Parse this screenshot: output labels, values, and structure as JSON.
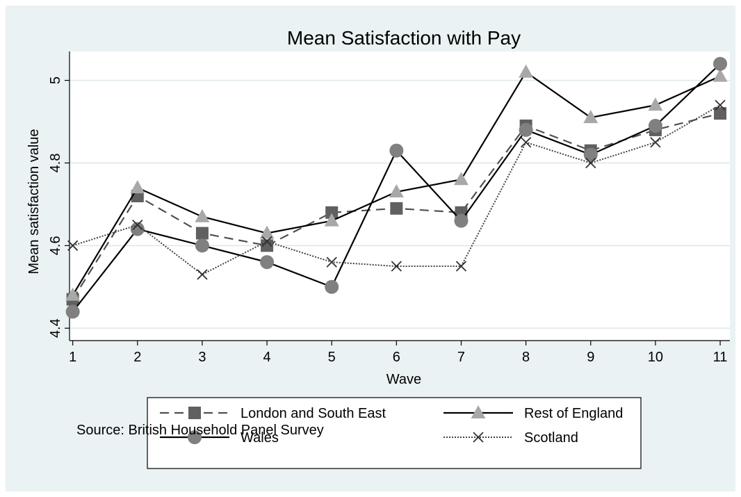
{
  "chart_data": {
    "type": "line",
    "title": "Mean Satisfaction with Pay",
    "xlabel": "Wave",
    "ylabel": "Mean satisfaction value",
    "x": [
      1,
      2,
      3,
      4,
      5,
      6,
      7,
      8,
      9,
      10,
      11
    ],
    "xticks": [
      "1",
      "2",
      "3",
      "4",
      "5",
      "6",
      "7",
      "8",
      "9",
      "10",
      "11"
    ],
    "yticks": [
      "4.4",
      "4.6",
      "4.8",
      "5"
    ],
    "ylim": [
      4.37,
      5.07
    ],
    "xlim": [
      0.95,
      11.15
    ],
    "grid": true,
    "legend_placement": "bottom",
    "note": "Source: British Household Panel Survey",
    "series": [
      {
        "name": "London and South East",
        "values": [
          4.47,
          4.72,
          4.63,
          4.6,
          4.68,
          4.69,
          4.68,
          4.89,
          4.83,
          4.88,
          4.92
        ],
        "line_style": "dashed",
        "marker": "square",
        "color": "#505050",
        "marker_color": "#606060"
      },
      {
        "name": "Rest of England",
        "values": [
          4.48,
          4.74,
          4.67,
          4.63,
          4.66,
          4.73,
          4.76,
          5.02,
          4.91,
          4.94,
          5.01
        ],
        "line_style": "solid",
        "marker": "triangle",
        "color": "#000000",
        "marker_color": "#a8a8a8"
      },
      {
        "name": "Wales",
        "values": [
          4.44,
          4.64,
          4.6,
          4.56,
          4.5,
          4.83,
          4.66,
          4.88,
          4.82,
          4.89,
          5.04
        ],
        "line_style": "solid",
        "marker": "circle",
        "color": "#000000",
        "marker_color": "#808080"
      },
      {
        "name": "Scotland",
        "values": [
          4.6,
          4.65,
          4.53,
          4.61,
          4.56,
          4.55,
          4.55,
          4.85,
          4.8,
          4.85,
          4.94
        ],
        "line_style": "dotted",
        "marker": "x",
        "color": "#404040",
        "marker_color": "#303030"
      }
    ]
  },
  "colors": {
    "outer_background": "#eaf2f3",
    "plot_background": "#ffffff",
    "grid": "#dde6e7",
    "axis": "#000000"
  }
}
